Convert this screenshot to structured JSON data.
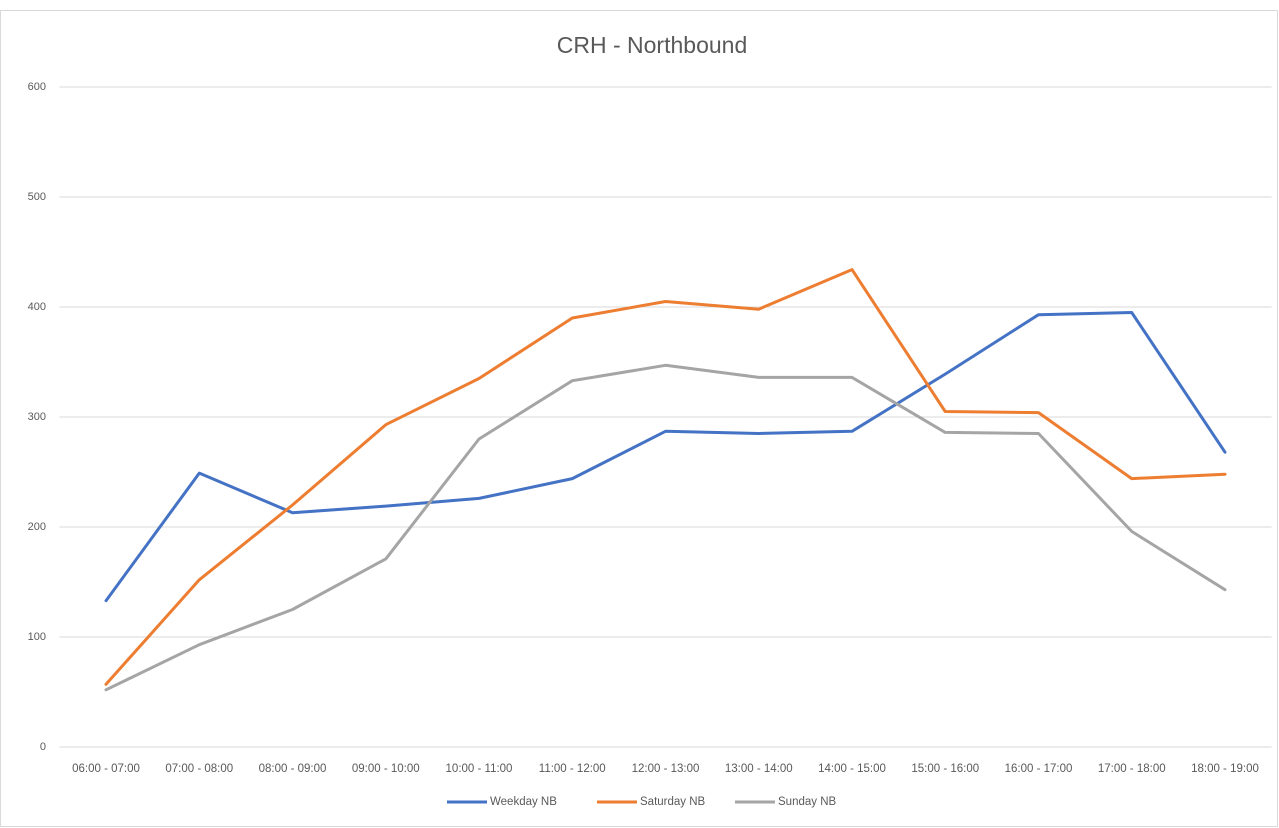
{
  "chart_data": {
    "type": "line",
    "title": "CRH - Northbound",
    "categories": [
      "06:00 - 07:00",
      "07:00 - 08:00",
      "08:00 - 09:00",
      "09:00 - 10:00",
      "10:00 - 11:00",
      "11:00 - 12:00",
      "12:00 - 13:00",
      "13:00 - 14:00",
      "14:00 - 15:00",
      "15:00 - 16:00",
      "16:00 - 17:00",
      "17:00 - 18:00",
      "18:00 - 19:00"
    ],
    "series": [
      {
        "name": "Weekday NB",
        "color": "#4472c4",
        "values": [
          133,
          249,
          213,
          219,
          226,
          244,
          287,
          285,
          287,
          339,
          393,
          395,
          268
        ]
      },
      {
        "name": "Saturday NB",
        "color": "#ed7d31",
        "values": [
          57,
          152,
          220,
          293,
          335,
          390,
          405,
          398,
          434,
          305,
          304,
          244,
          248
        ]
      },
      {
        "name": "Sunday NB",
        "color": "#a5a5a5",
        "values": [
          52,
          93,
          125,
          171,
          280,
          333,
          347,
          336,
          336,
          286,
          285,
          196,
          143
        ]
      }
    ],
    "ylim": [
      0,
      600
    ],
    "yticks": [
      0,
      100,
      200,
      300,
      400,
      500,
      600
    ],
    "grid": true,
    "legend": "bottom"
  }
}
